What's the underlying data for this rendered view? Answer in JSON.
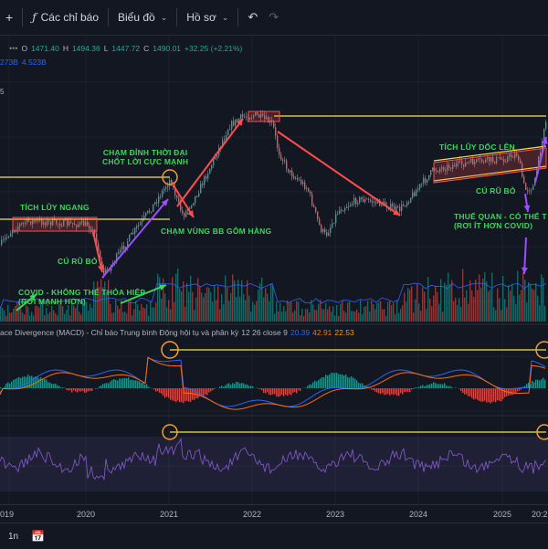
{
  "toolbar": {
    "plus_icon": "plus-icon",
    "indicators_icon": "fx-icon",
    "indicators_label": "Các chỉ báo",
    "chart_label": "Biểu đồ",
    "profile_label": "Hồ sơ",
    "undo_icon": "undo-icon",
    "redo_icon": "redo-icon"
  },
  "ohlc": {
    "o_key": "O",
    "o": "1471.40",
    "h_key": "H",
    "h": "1494.36",
    "l_key": "L",
    "l": "1447.72",
    "c_key": "C",
    "c": "1490.01",
    "change": "+32.25 (+2.21%)"
  },
  "volume": {
    "v1": "273B",
    "v2": "4.523B"
  },
  "price_tick": "5",
  "macd": {
    "title": "ace Divergence (MACD) - Chỉ báo Trung bình Động hội tụ và phân kỳ",
    "params": "12 26 close 9",
    "v1": "20.39",
    "v2": "42.91",
    "v3": "22.53"
  },
  "annotations": {
    "peak_l1": "CHẠM ĐỈNH THỜI ĐẠI",
    "peak_l2": "CHỐT LỜI CỰC MẠNH",
    "accum_flat": "TÍCH LŨY NGANG",
    "bb_zone": "CHẠM VÙNG BB GÔM HÀNG",
    "accum_rising": "TÍCH LŨY DỐC LÊN",
    "shakeout_right": "CÚ RŨ BỎ",
    "tariff_l1": "THUẾ QUAN - CÓ THỂ T",
    "tariff_l2": "(RƠI ÍT HƠN COVID)",
    "shakeout_left": "CÚ RŨ BỎ",
    "covid_l1": "COVID - KHÔNG THỂ THỎA HIỆP",
    "covid_l2": "(RƠI MẠNH HƠN)"
  },
  "x_axis": [
    "019",
    "2020",
    "2021",
    "2022",
    "2023",
    "2024",
    "2025",
    "20:2"
  ],
  "bottom": {
    "interval": "1n",
    "calendar_icon": "calendar-icon"
  },
  "colors": {
    "background": "#131722",
    "up": "#26a69a",
    "down": "#ef5350",
    "annotation": "#3fd45b",
    "yellow_line": "#f5e642",
    "red_arrow": "#ff4d4d",
    "purple_arrow": "#9c4dff",
    "macd_line": "#2962ff",
    "signal_line": "#ff6d00",
    "rsi_line": "#7e57c2"
  }
}
